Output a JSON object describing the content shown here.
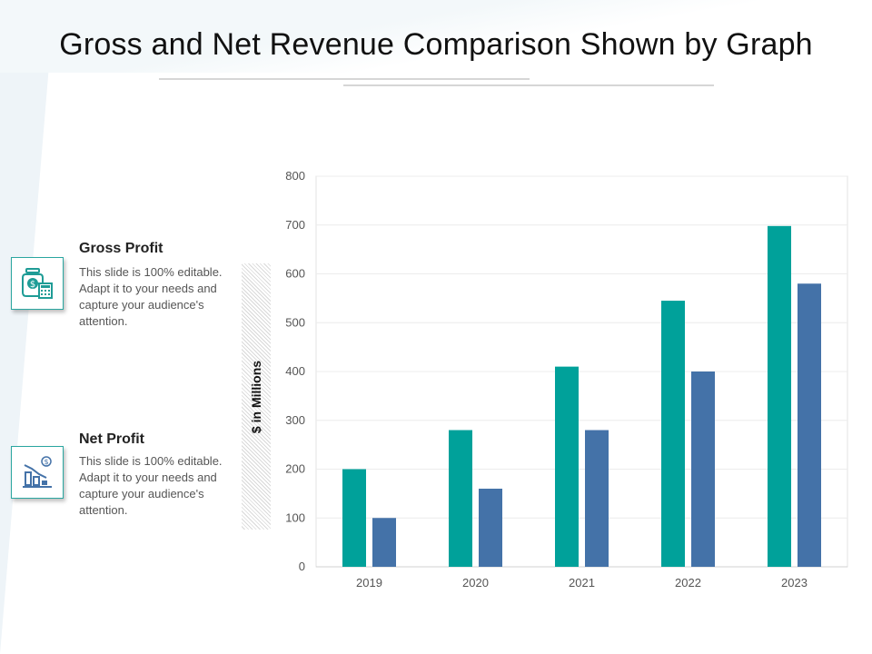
{
  "slide": {
    "title": "Gross and Net Revenue Comparison Shown by Graph"
  },
  "legend": [
    {
      "title": "Gross Profit",
      "description": "This slide is 100% editable. Adapt it to your needs and capture your audience's attention.",
      "icon": "money-jar-calculator-icon",
      "color": "#00A19A"
    },
    {
      "title": "Net Profit",
      "description": "This slide is 100% editable. Adapt it to your needs and capture your audience's attention.",
      "icon": "declining-bar-chart-icon",
      "color": "#4472A8"
    }
  ],
  "chart_data": {
    "type": "bar",
    "categories": [
      "2019",
      "2020",
      "2021",
      "2022",
      "2023"
    ],
    "series": [
      {
        "values": [
          200,
          280,
          410,
          545,
          698
        ],
        "color": "#00A19A"
      },
      {
        "values": [
          100,
          160,
          280,
          400,
          580
        ],
        "color": "#4472A8"
      }
    ],
    "title": "",
    "xlabel": "",
    "ylabel": "$ in Millions",
    "ylim": [
      0,
      800
    ],
    "yticks": [
      0,
      100,
      200,
      300,
      400,
      500,
      600,
      700,
      800
    ],
    "grid": true,
    "legend": "left"
  }
}
